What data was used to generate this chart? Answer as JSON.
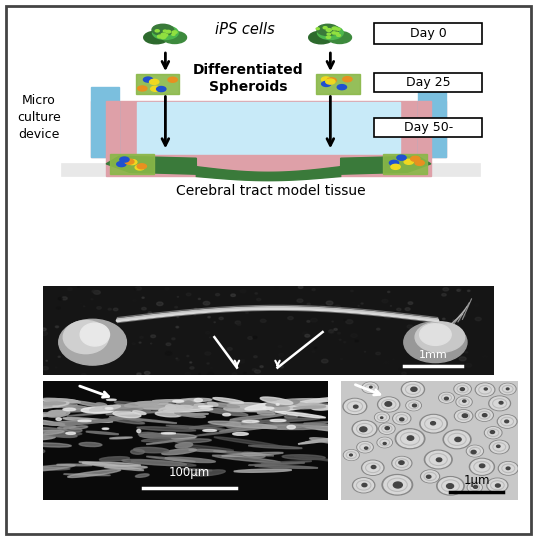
{
  "fig_width": 5.37,
  "fig_height": 5.4,
  "dpi": 100,
  "bg_color": "#ffffff",
  "top_panel": {
    "label_micro": "Micro\nculture\ndevice",
    "label_bottom": "Cerebral tract model tissue",
    "day0": "Day 0",
    "day25": "Day 25",
    "day50": "Day 50-",
    "ips_label": "iPS cells",
    "diff_label": "Differentiated\nSpheroids",
    "device_color": "#7bbfde",
    "pink_color": "#dea0a8",
    "inner_color": "#c8eaf8",
    "green_color": "#3a7a3a",
    "base_color": "#e8e8e8"
  },
  "scale_bar_1mm": "1mm",
  "scale_bar_100um": "100μm",
  "scale_bar_1um": "1μm"
}
